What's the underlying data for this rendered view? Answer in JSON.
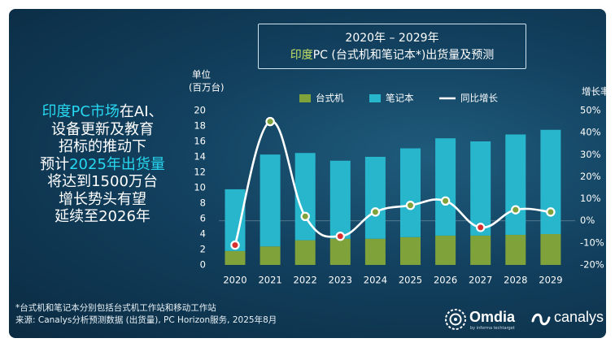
{
  "title": {
    "years": "2020年 – 2029年",
    "line2_highlight": "印度",
    "line2_rest": "PC (台式机和笔记本*)出货量及预测"
  },
  "headline": {
    "l1_hl": "印度PC市场",
    "l1_rest": "在AI、",
    "l2": "设备更新及教育",
    "l3": "招标的推动下",
    "l4_pre": "预计",
    "l4_hl": "2025年出货量",
    "l5": "将达到1500万台",
    "l6": "增长势头有望",
    "l7": "延续至2026年"
  },
  "footnote": {
    "line1": "*台式机和笔记本分别包括台式机工作站和移动工作站",
    "line2": "来源: Canalys分析预测数据 (出货量), PC Horizon服务, 2025年8月"
  },
  "logos": {
    "omdia": "Omdia",
    "omdia_sub": "by informa techtarget",
    "canalys": "canalys"
  },
  "colors": {
    "desktop": "#7fa23a",
    "notebook": "#28b6cc",
    "line": "#ffffff",
    "marker": "#d62f2f",
    "highlight_green": "#c4e265",
    "highlight_cyan": "#27d8f0"
  },
  "chart_data": {
    "type": "bar",
    "stacked": true,
    "categories": [
      "2020",
      "2021",
      "2022",
      "2023",
      "2024",
      "2025",
      "2026",
      "2027",
      "2028",
      "2029"
    ],
    "series": [
      {
        "name": "台式机",
        "values": [
          1.8,
          2.4,
          3.2,
          3.4,
          3.4,
          3.6,
          3.8,
          3.8,
          3.9,
          4.0
        ]
      },
      {
        "name": "笔记本",
        "values": [
          8.0,
          11.9,
          11.3,
          10.1,
          10.6,
          11.5,
          12.6,
          12.2,
          13.0,
          13.5
        ]
      }
    ],
    "line_series": {
      "name": "同比增长",
      "values": [
        -11,
        45,
        2,
        -7,
        4,
        7,
        9,
        -3,
        5,
        4
      ]
    },
    "left_axis": {
      "label_line1": "单位",
      "label_line2": "(百万台)",
      "range": [
        0,
        20
      ],
      "ticks": [
        0,
        2,
        4,
        6,
        8,
        10,
        12,
        14,
        16,
        18,
        20
      ]
    },
    "right_axis": {
      "label": "增长率",
      "range": [
        -20,
        50
      ],
      "ticks": [
        "-20%",
        "-10%",
        "0%",
        "10%",
        "20%",
        "30%",
        "40%",
        "50%"
      ]
    },
    "legend_position": "top",
    "grid": false
  }
}
